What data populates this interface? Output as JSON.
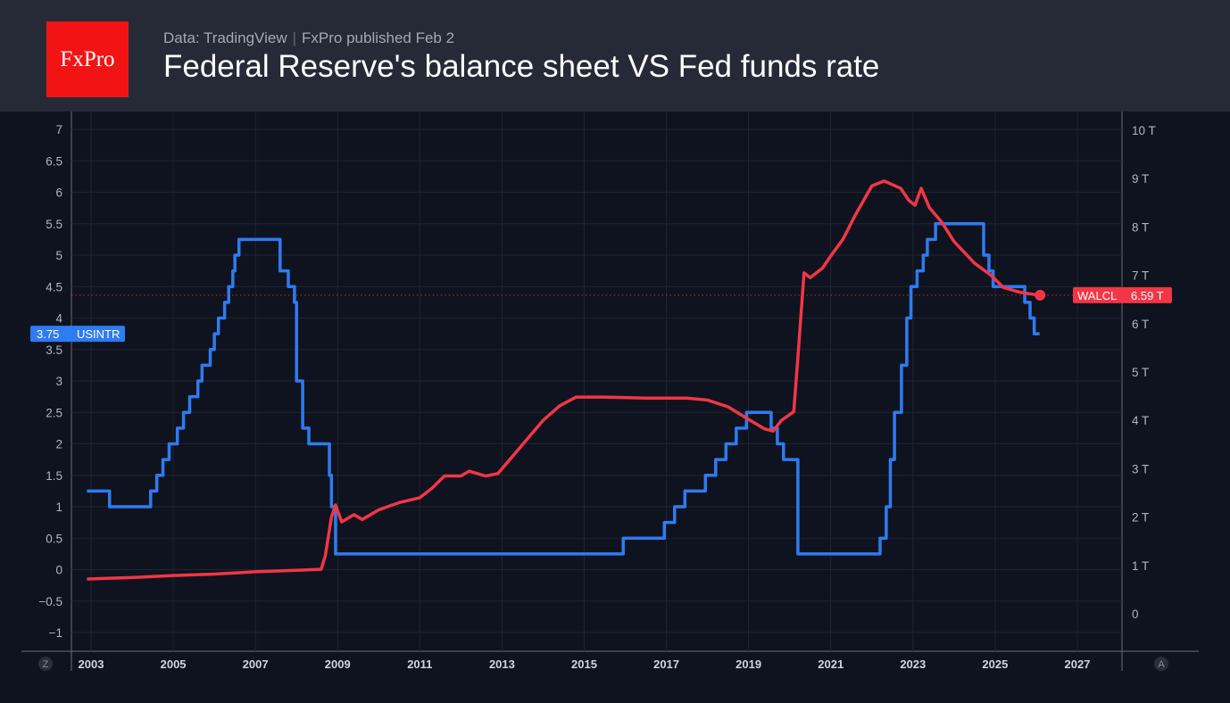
{
  "header": {
    "logo": "FxPro",
    "source": "Data: TradingView",
    "published": "FxPro published Feb 2",
    "title": "Federal Reserve's balance sheet VS Fed funds rate"
  },
  "controls": {
    "left_button": "Z",
    "right_button": "A"
  },
  "chart_data": {
    "type": "line",
    "title": "Federal Reserve's balance sheet VS Fed funds rate",
    "x_ticks": [
      "2003",
      "2005",
      "2007",
      "2009",
      "2011",
      "2013",
      "2015",
      "2017",
      "2019",
      "2021",
      "2023",
      "2025",
      "2027"
    ],
    "xlim": [
      2002.5,
      2028.1
    ],
    "left_axis": {
      "ylim": [
        -1.3,
        7.3
      ],
      "ticks": [
        "7",
        "6.5",
        "6",
        "5.5",
        "5",
        "4.5",
        "4",
        "3.5",
        "3",
        "2.5",
        "2",
        "1.5",
        "1",
        "0.5",
        "0",
        "−0.5",
        "−1"
      ]
    },
    "right_axis": {
      "ylim": [
        -0.7,
        10.4
      ],
      "unit": "T",
      "ticks": [
        "10 T",
        "9 T",
        "8 T",
        "7 T",
        "6 T",
        "5 T",
        "4 T",
        "3 T",
        "2 T",
        "1 T",
        "0"
      ]
    },
    "grid": true,
    "series": [
      {
        "name": "USINTR",
        "axis": "left",
        "color": "#2f7bf0",
        "step": true,
        "last_value": "3.75",
        "points": [
          [
            2002.9,
            1.25
          ],
          [
            2003.45,
            1.0
          ],
          [
            2004.45,
            1.25
          ],
          [
            2004.6,
            1.5
          ],
          [
            2004.75,
            1.75
          ],
          [
            2004.9,
            2.0
          ],
          [
            2005.1,
            2.25
          ],
          [
            2005.25,
            2.5
          ],
          [
            2005.4,
            2.75
          ],
          [
            2005.6,
            3.0
          ],
          [
            2005.7,
            3.25
          ],
          [
            2005.9,
            3.5
          ],
          [
            2006.0,
            3.75
          ],
          [
            2006.1,
            4.0
          ],
          [
            2006.25,
            4.25
          ],
          [
            2006.35,
            4.5
          ],
          [
            2006.45,
            4.75
          ],
          [
            2006.5,
            5.0
          ],
          [
            2006.6,
            5.25
          ],
          [
            2007.6,
            4.75
          ],
          [
            2007.8,
            4.5
          ],
          [
            2007.95,
            4.25
          ],
          [
            2008.0,
            3.0
          ],
          [
            2008.15,
            2.25
          ],
          [
            2008.3,
            2.0
          ],
          [
            2008.8,
            1.5
          ],
          [
            2008.85,
            1.0
          ],
          [
            2008.95,
            0.25
          ],
          [
            2015.95,
            0.5
          ],
          [
            2016.95,
            0.75
          ],
          [
            2017.2,
            1.0
          ],
          [
            2017.45,
            1.25
          ],
          [
            2017.95,
            1.5
          ],
          [
            2018.2,
            1.75
          ],
          [
            2018.45,
            2.0
          ],
          [
            2018.7,
            2.25
          ],
          [
            2018.95,
            2.5
          ],
          [
            2019.55,
            2.25
          ],
          [
            2019.7,
            2.0
          ],
          [
            2019.85,
            1.75
          ],
          [
            2020.2,
            0.25
          ],
          [
            2022.2,
            0.5
          ],
          [
            2022.35,
            1.0
          ],
          [
            2022.45,
            1.75
          ],
          [
            2022.55,
            2.5
          ],
          [
            2022.72,
            3.25
          ],
          [
            2022.85,
            4.0
          ],
          [
            2022.95,
            4.5
          ],
          [
            2023.1,
            4.75
          ],
          [
            2023.25,
            5.0
          ],
          [
            2023.35,
            5.25
          ],
          [
            2023.55,
            5.5
          ],
          [
            2024.72,
            5.0
          ],
          [
            2024.85,
            4.75
          ],
          [
            2024.95,
            4.5
          ],
          [
            2025.72,
            4.25
          ],
          [
            2025.85,
            4.0
          ],
          [
            2025.95,
            3.75
          ],
          [
            2026.08,
            3.75
          ]
        ]
      },
      {
        "name": "WALCL",
        "axis": "right",
        "color": "#f23645",
        "step": false,
        "last_value": "6.59 T",
        "points": [
          [
            2002.9,
            0.72
          ],
          [
            2004,
            0.75
          ],
          [
            2005,
            0.79
          ],
          [
            2006,
            0.82
          ],
          [
            2007,
            0.87
          ],
          [
            2008,
            0.9
          ],
          [
            2008.6,
            0.92
          ],
          [
            2008.7,
            1.2
          ],
          [
            2008.85,
            2.0
          ],
          [
            2008.95,
            2.25
          ],
          [
            2009.1,
            1.9
          ],
          [
            2009.4,
            2.05
          ],
          [
            2009.6,
            1.95
          ],
          [
            2010,
            2.15
          ],
          [
            2010.5,
            2.3
          ],
          [
            2011,
            2.4
          ],
          [
            2011.3,
            2.6
          ],
          [
            2011.6,
            2.85
          ],
          [
            2012,
            2.85
          ],
          [
            2012.2,
            2.95
          ],
          [
            2012.6,
            2.85
          ],
          [
            2012.9,
            2.9
          ],
          [
            2013.2,
            3.2
          ],
          [
            2013.6,
            3.6
          ],
          [
            2014,
            4.0
          ],
          [
            2014.4,
            4.3
          ],
          [
            2014.8,
            4.48
          ],
          [
            2015.5,
            4.48
          ],
          [
            2016.5,
            4.46
          ],
          [
            2017.5,
            4.46
          ],
          [
            2018,
            4.42
          ],
          [
            2018.5,
            4.28
          ],
          [
            2019,
            4.02
          ],
          [
            2019.4,
            3.82
          ],
          [
            2019.6,
            3.78
          ],
          [
            2019.8,
            4.0
          ],
          [
            2020.1,
            4.18
          ],
          [
            2020.2,
            5.3
          ],
          [
            2020.35,
            7.05
          ],
          [
            2020.5,
            6.95
          ],
          [
            2020.8,
            7.15
          ],
          [
            2021,
            7.4
          ],
          [
            2021.3,
            7.75
          ],
          [
            2021.6,
            8.25
          ],
          [
            2022,
            8.85
          ],
          [
            2022.3,
            8.95
          ],
          [
            2022.7,
            8.8
          ],
          [
            2022.9,
            8.55
          ],
          [
            2023.05,
            8.45
          ],
          [
            2023.2,
            8.8
          ],
          [
            2023.4,
            8.4
          ],
          [
            2023.7,
            8.1
          ],
          [
            2024,
            7.7
          ],
          [
            2024.5,
            7.25
          ],
          [
            2024.9,
            7.0
          ],
          [
            2025.2,
            6.75
          ],
          [
            2025.6,
            6.65
          ],
          [
            2026.05,
            6.59
          ]
        ]
      }
    ]
  }
}
